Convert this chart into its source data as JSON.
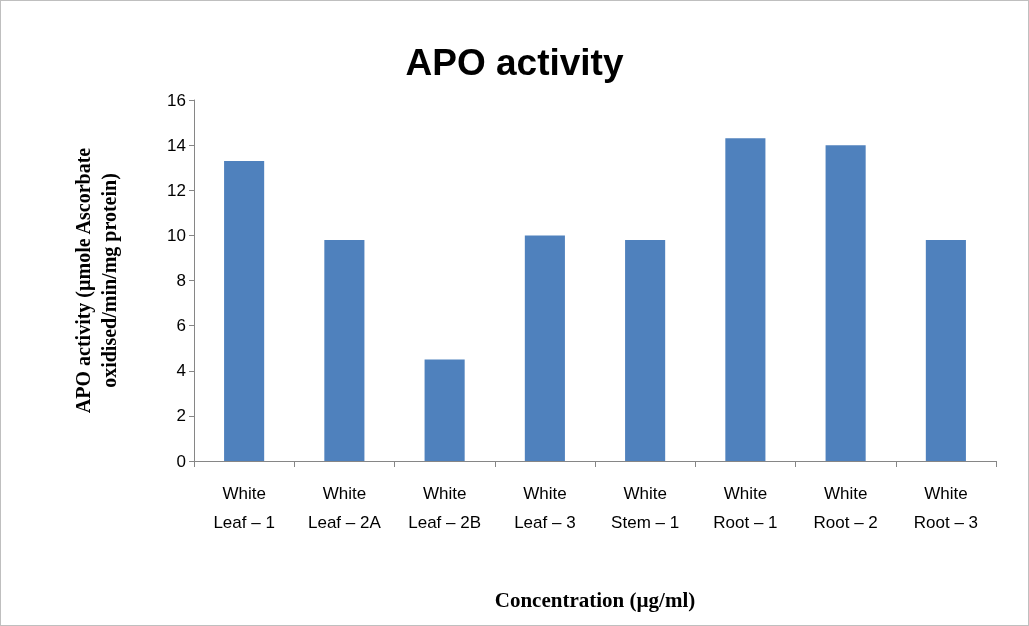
{
  "chart_data": {
    "type": "bar",
    "title": "APO activity",
    "xlabel": "Concentration (µg/ml)",
    "ylabel": "APO activity (µmole Ascorbate oxidised/min/mg protein)",
    "categories": [
      "White Leaf – 1",
      "White Leaf – 2A",
      "White Leaf – 2B",
      "White Leaf – 3",
      "White Stem – 1",
      "White Root – 1",
      "White Root – 2",
      "White Root – 3"
    ],
    "values": [
      13.3,
      9.8,
      4.5,
      10.0,
      9.8,
      14.3,
      14.0,
      9.8
    ],
    "color": "#4f81bd",
    "ylim": [
      0,
      16
    ],
    "yticks": [
      0,
      2,
      4,
      6,
      8,
      10,
      12,
      14,
      16
    ],
    "grid": false
  }
}
